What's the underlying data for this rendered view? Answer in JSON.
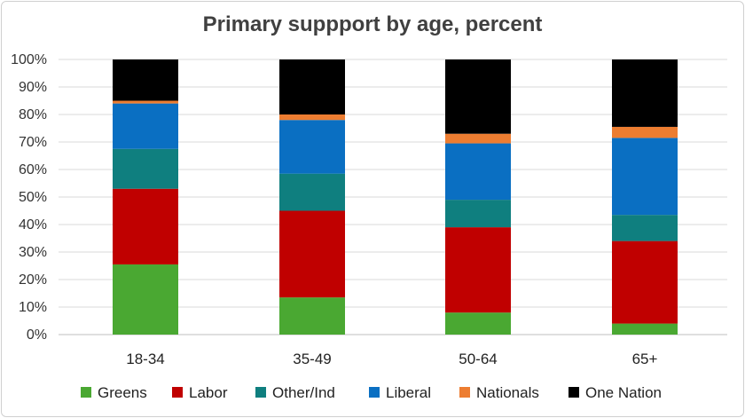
{
  "chart_data": {
    "type": "bar",
    "stacked": true,
    "title": "Primary suppport by age, percent",
    "xlabel": "",
    "ylabel": "",
    "ylim": [
      0,
      100
    ],
    "y_tick_suffix": "%",
    "y_ticks": [
      0,
      10,
      20,
      30,
      40,
      50,
      60,
      70,
      80,
      90,
      100
    ],
    "grid": true,
    "legend_position": "bottom",
    "categories": [
      "18-34",
      "35-49",
      "50-64",
      "65+"
    ],
    "series": [
      {
        "name": "Greens",
        "color": "#4aa832",
        "values": [
          25.5,
          13.5,
          8,
          4
        ]
      },
      {
        "name": "Labor",
        "color": "#c00000",
        "values": [
          27.5,
          31.5,
          31,
          30
        ]
      },
      {
        "name": "Other/Ind",
        "color": "#0f7f7f",
        "values": [
          14.5,
          13.5,
          10,
          9.5
        ]
      },
      {
        "name": "Liberal",
        "color": "#0a6fc2",
        "values": [
          16.5,
          19.5,
          20.5,
          28
        ]
      },
      {
        "name": "Nationals",
        "color": "#ed7d31",
        "values": [
          1,
          2,
          3.5,
          4
        ]
      },
      {
        "name": "One Nation",
        "color": "#000000",
        "values": [
          15,
          20,
          27,
          24.5
        ]
      }
    ]
  }
}
